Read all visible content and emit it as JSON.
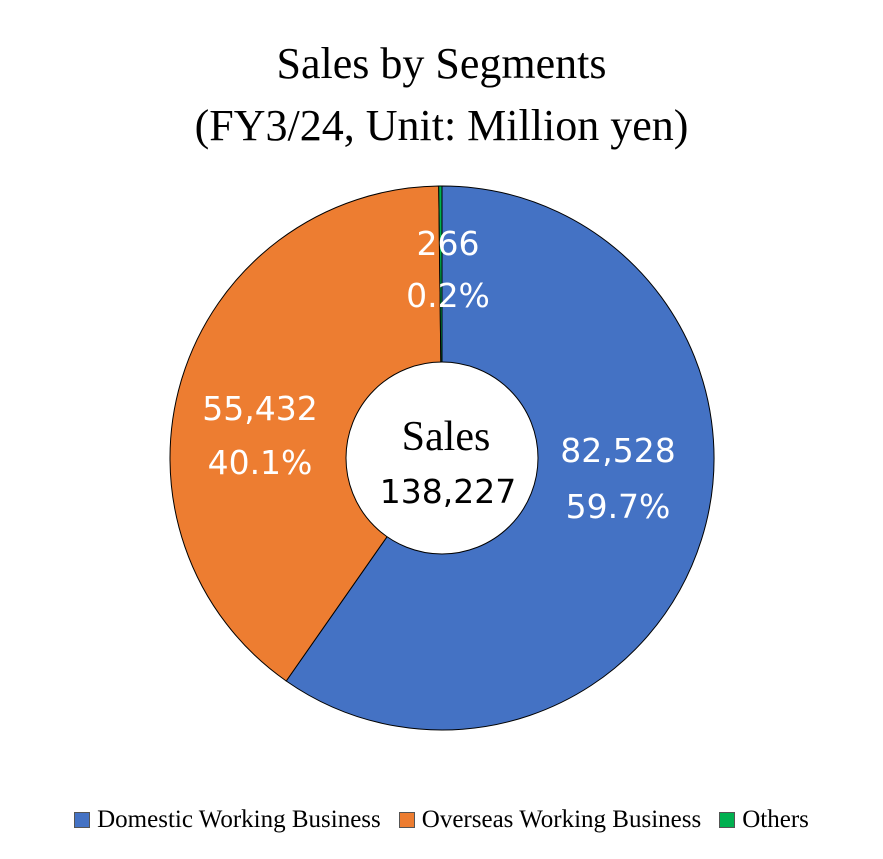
{
  "chart_data": {
    "type": "pie",
    "title_line1": "Sales by Segments",
    "title_line2": "(FY3/24, Unit: Million yen)",
    "center": {
      "title": "Sales",
      "value": "138,227"
    },
    "slices": [
      {
        "name": "Domestic Working Business",
        "value": 82528,
        "value_label": "82,528",
        "percent_label": "59.7%",
        "color": "#4472C4"
      },
      {
        "name": "Overseas Working Business",
        "value": 55432,
        "value_label": "55,432",
        "percent_label": "40.1%",
        "color": "#ED7D31"
      },
      {
        "name": "Others",
        "value": 266,
        "value_label": "266",
        "percent_label": "0.2%",
        "color": "#00B050"
      }
    ],
    "legend_position": "bottom"
  }
}
